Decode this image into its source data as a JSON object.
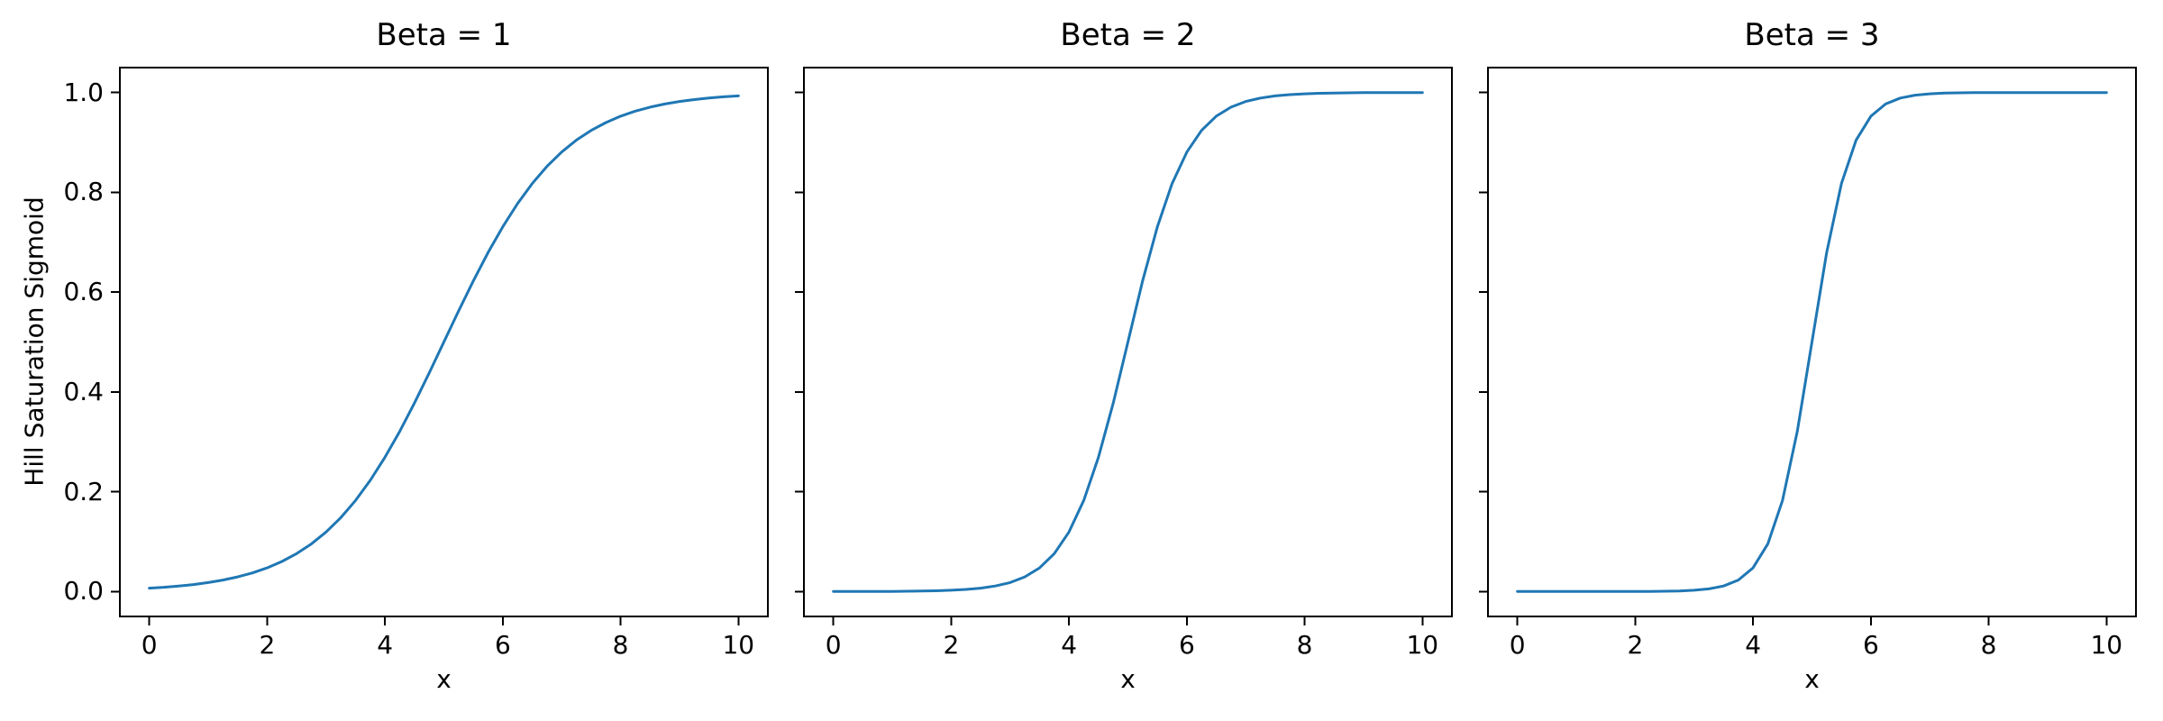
{
  "figure": {
    "background": "#ffffff",
    "text_color": "#000000",
    "accent_line_color": "#1f77b4"
  },
  "chart_data": [
    {
      "type": "line",
      "title": "Beta = 1",
      "xlabel": "x",
      "ylabel": "Hill Saturation Sigmoid",
      "xlim": [
        -0.5,
        10.5
      ],
      "ylim": [
        -0.05,
        1.05
      ],
      "xticks": [
        0,
        2,
        4,
        6,
        8,
        10
      ],
      "xtick_labels": [
        "0",
        "2",
        "4",
        "6",
        "8",
        "10"
      ],
      "yticks": [
        0.0,
        0.2,
        0.4,
        0.6,
        0.8,
        1.0
      ],
      "ytick_labels": [
        "0.0",
        "0.2",
        "0.4",
        "0.6",
        "0.8",
        "1.0"
      ],
      "show_ytick_labels": true,
      "grid": false,
      "legend": "none",
      "line_color": "#1f77b4",
      "x": [
        0,
        0.25,
        0.5,
        0.75,
        1,
        1.25,
        1.5,
        1.75,
        2,
        2.25,
        2.5,
        2.75,
        3,
        3.25,
        3.5,
        3.75,
        4,
        4.25,
        4.5,
        4.75,
        5,
        5.25,
        5.5,
        5.75,
        6,
        6.25,
        6.5,
        6.75,
        7,
        7.25,
        7.5,
        7.75,
        8,
        8.25,
        8.5,
        8.75,
        9,
        9.25,
        9.5,
        9.75,
        10
      ],
      "y": [
        0.0067,
        0.0086,
        0.011,
        0.014,
        0.018,
        0.0229,
        0.0293,
        0.0373,
        0.0474,
        0.0601,
        0.0759,
        0.0953,
        0.1192,
        0.148,
        0.1824,
        0.2227,
        0.2689,
        0.3208,
        0.3775,
        0.4378,
        0.5,
        0.5622,
        0.6225,
        0.6792,
        0.7311,
        0.7773,
        0.8176,
        0.852,
        0.8808,
        0.9047,
        0.9241,
        0.9399,
        0.9526,
        0.9627,
        0.9707,
        0.977,
        0.982,
        0.9859,
        0.989,
        0.9914,
        0.9933
      ]
    },
    {
      "type": "line",
      "title": "Beta = 2",
      "xlabel": "x",
      "ylabel": "",
      "xlim": [
        -0.5,
        10.5
      ],
      "ylim": [
        -0.05,
        1.05
      ],
      "xticks": [
        0,
        2,
        4,
        6,
        8,
        10
      ],
      "xtick_labels": [
        "0",
        "2",
        "4",
        "6",
        "8",
        "10"
      ],
      "yticks": [
        0.0,
        0.2,
        0.4,
        0.6,
        0.8,
        1.0
      ],
      "ytick_labels": [
        "0.0",
        "0.2",
        "0.4",
        "0.6",
        "0.8",
        "1.0"
      ],
      "show_ytick_labels": false,
      "grid": false,
      "legend": "none",
      "line_color": "#1f77b4",
      "x": [
        0,
        0.25,
        0.5,
        0.75,
        1,
        1.25,
        1.5,
        1.75,
        2,
        2.25,
        2.5,
        2.75,
        3,
        3.25,
        3.5,
        3.75,
        4,
        4.25,
        4.5,
        4.75,
        5,
        5.25,
        5.5,
        5.75,
        6,
        6.25,
        6.5,
        6.75,
        7,
        7.25,
        7.5,
        7.75,
        8,
        8.25,
        8.5,
        8.75,
        9,
        9.25,
        9.5,
        9.75,
        10
      ],
      "y": [
        0.0,
        0.0001,
        0.0001,
        0.0002,
        0.0003,
        0.0006,
        0.0009,
        0.0015,
        0.0025,
        0.0041,
        0.0067,
        0.011,
        0.018,
        0.0293,
        0.0474,
        0.0759,
        0.1192,
        0.1824,
        0.2689,
        0.3775,
        0.5,
        0.6225,
        0.7311,
        0.8176,
        0.8808,
        0.9241,
        0.9526,
        0.9707,
        0.982,
        0.989,
        0.9933,
        0.9959,
        0.9975,
        0.9985,
        0.9991,
        0.9994,
        0.9997,
        0.9998,
        0.9999,
        0.9999,
        1.0
      ]
    },
    {
      "type": "line",
      "title": "Beta = 3",
      "xlabel": "x",
      "ylabel": "",
      "xlim": [
        -0.5,
        10.5
      ],
      "ylim": [
        -0.05,
        1.05
      ],
      "xticks": [
        0,
        2,
        4,
        6,
        8,
        10
      ],
      "xtick_labels": [
        "0",
        "2",
        "4",
        "6",
        "8",
        "10"
      ],
      "yticks": [
        0.0,
        0.2,
        0.4,
        0.6,
        0.8,
        1.0
      ],
      "ytick_labels": [
        "0.0",
        "0.2",
        "0.4",
        "0.6",
        "0.8",
        "1.0"
      ],
      "show_ytick_labels": false,
      "grid": false,
      "legend": "none",
      "line_color": "#1f77b4",
      "x": [
        0,
        0.25,
        0.5,
        0.75,
        1,
        1.25,
        1.5,
        1.75,
        2,
        2.25,
        2.5,
        2.75,
        3,
        3.25,
        3.5,
        3.75,
        4,
        4.25,
        4.5,
        4.75,
        5,
        5.25,
        5.5,
        5.75,
        6,
        6.25,
        6.5,
        6.75,
        7,
        7.25,
        7.5,
        7.75,
        8,
        8.25,
        8.5,
        8.75,
        9,
        9.25,
        9.5,
        9.75,
        10
      ],
      "y": [
        0.0,
        0.0,
        0.0,
        0.0,
        0.0,
        0.0,
        0.0,
        0.0001,
        0.0001,
        0.0003,
        0.0006,
        0.0012,
        0.0025,
        0.0052,
        0.011,
        0.023,
        0.0474,
        0.0953,
        0.1824,
        0.3208,
        0.5,
        0.6792,
        0.8176,
        0.9047,
        0.9526,
        0.977,
        0.989,
        0.9948,
        0.9975,
        0.9988,
        0.9994,
        0.9997,
        0.9999,
        0.9999,
        1.0,
        1.0,
        1.0,
        1.0,
        1.0,
        1.0,
        1.0
      ]
    }
  ]
}
